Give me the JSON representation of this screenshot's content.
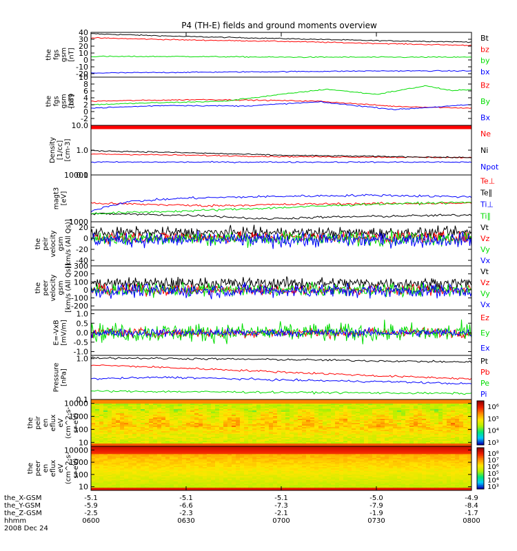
{
  "title": "P4 (TH-E) fields and ground moments overview",
  "colors": {
    "black": "#000000",
    "red": "#ff0000",
    "green": "#00dd00",
    "blue": "#0000ff"
  },
  "chart_data": [
    {
      "type": "line",
      "panel": 1,
      "ylabel": [
        "the",
        "fgs",
        "gsm",
        "[nT]"
      ],
      "ylim": [
        -25,
        40
      ],
      "yticks": [
        40,
        30,
        20,
        10,
        0,
        -10,
        -20
      ],
      "series": [
        {
          "name": "Bt",
          "color": "black",
          "x": [
            0,
            0.25,
            0.5,
            0.75,
            1
          ],
          "values": [
            38,
            34,
            31,
            28,
            26
          ]
        },
        {
          "name": "bz",
          "color": "red",
          "x": [
            0,
            0.25,
            0.5,
            0.75,
            1
          ],
          "values": [
            32,
            29,
            27,
            24,
            21
          ]
        },
        {
          "name": "by",
          "color": "green",
          "x": [
            0,
            0.25,
            0.5,
            0.75,
            1
          ],
          "values": [
            5,
            5,
            4,
            4,
            4
          ]
        },
        {
          "name": "bx",
          "color": "blue",
          "x": [
            0,
            0.25,
            0.5,
            0.75,
            1
          ],
          "values": [
            -19,
            -18,
            -17,
            -16,
            -16
          ]
        }
      ]
    },
    {
      "type": "line",
      "panel": 2,
      "ylabel": [
        "the",
        "fgs",
        "gsm",
        "[nT]"
      ],
      "ylabel_overlay": "-189",
      "ylim": [
        -4,
        10
      ],
      "yticks": [
        10,
        8,
        6,
        4,
        2,
        0,
        -2
      ],
      "series": [
        {
          "name": "Bz",
          "color": "red",
          "x": [
            0,
            0.1,
            0.3,
            0.5,
            0.6,
            0.8,
            1
          ],
          "values": [
            3,
            3.2,
            3.5,
            3.2,
            3,
            1.5,
            1
          ]
        },
        {
          "name": "By",
          "color": "green",
          "x": [
            0,
            0.15,
            0.35,
            0.5,
            0.62,
            0.75,
            0.88,
            0.95,
            1
          ],
          "values": [
            2,
            2.5,
            3,
            5,
            6.5,
            5,
            7.5,
            6,
            6.5
          ]
        },
        {
          "name": "Bx",
          "color": "blue",
          "x": [
            0,
            0.2,
            0.4,
            0.6,
            0.8,
            1
          ],
          "values": [
            1,
            1.8,
            1.6,
            2.8,
            0.6,
            2
          ]
        }
      ]
    },
    {
      "type": "line",
      "panel": 3,
      "yscale": "log",
      "ylabel": [
        "Density",
        "[1/cc]",
        "[cm-3]"
      ],
      "ylim": [
        0.1,
        10
      ],
      "yticks": [
        10.0,
        1.0,
        0.1
      ],
      "yticklabels": [
        "10.0",
        "1.0",
        "0.1"
      ],
      "series": [
        {
          "name": "Ne",
          "color": "red",
          "x": [
            0,
            0.5,
            1
          ],
          "values": [
            0.7,
            0.55,
            0.5
          ]
        },
        {
          "name": "Ni",
          "color": "black",
          "x": [
            0,
            0.5,
            1
          ],
          "values": [
            0.95,
            0.62,
            0.5
          ]
        },
        {
          "name": "Npot",
          "color": "blue",
          "x": [
            0,
            0.5,
            1
          ],
          "values": [
            0.33,
            0.33,
            0.33
          ]
        }
      ]
    },
    {
      "type": "line",
      "panel": 4,
      "yscale": "log",
      "ylabel": [
        "magt3",
        "[eV]"
      ],
      "ylim": [
        1000,
        10000
      ],
      "yticks": [
        10000,
        1000
      ],
      "yticklabels": [
        "10000",
        "1000"
      ],
      "series": [
        {
          "name": "Te⊥",
          "color": "red",
          "x": [
            0,
            0.3,
            0.6,
            1
          ],
          "values": [
            2500,
            2200,
            2400,
            2500
          ]
        },
        {
          "name": "Te∥",
          "color": "black",
          "x": [
            0,
            0.3,
            0.45,
            0.6,
            1
          ],
          "values": [
            1500,
            1350,
            1150,
            1250,
            1400
          ]
        },
        {
          "name": "Ti⊥",
          "color": "blue",
          "x": [
            0,
            0.1,
            0.25,
            0.5,
            0.75,
            1
          ],
          "values": [
            1700,
            2700,
            3200,
            3500,
            3700,
            3400
          ]
        },
        {
          "name": "Ti∥",
          "color": "green",
          "x": [
            0,
            0.25,
            0.5,
            0.75,
            1
          ],
          "values": [
            1500,
            1700,
            2000,
            2400,
            2600
          ]
        }
      ]
    },
    {
      "type": "line",
      "panel": 5,
      "ylabel": [
        "the",
        "peir",
        "velocity",
        "gsm",
        "[km/s (All Qs)]"
      ],
      "ylim": [
        -50,
        30
      ],
      "yticks": [
        20,
        0,
        -20,
        -40
      ],
      "series": [
        {
          "name": "Vt",
          "color": "black",
          "mean": 10,
          "noise": 7
        },
        {
          "name": "Vz",
          "color": "red",
          "mean": 2,
          "noise": 7
        },
        {
          "name": "Vy",
          "color": "green",
          "mean": 0,
          "noise": 9
        },
        {
          "name": "Vx",
          "color": "blue",
          "mean": -3,
          "noise": 9
        }
      ]
    },
    {
      "type": "line",
      "panel": 6,
      "ylabel": [
        "the",
        "peer",
        "velocity",
        "gsm",
        "[km/s (All Qs)]"
      ],
      "ylim": [
        -250,
        300
      ],
      "yticks": [
        300,
        200,
        100,
        0,
        -100,
        -200
      ],
      "series": [
        {
          "name": "Vt",
          "color": "black",
          "mean": 80,
          "noise": 55
        },
        {
          "name": "Vz",
          "color": "red",
          "mean": 0,
          "noise": 45
        },
        {
          "name": "Vy",
          "color": "green",
          "mean": 0,
          "noise": 55
        },
        {
          "name": "Vx",
          "color": "blue",
          "mean": -10,
          "noise": 60
        }
      ]
    },
    {
      "type": "line",
      "panel": 7,
      "ylabel": [
        "E=-VxB",
        "[mV/m]"
      ],
      "ylim": [
        -1.2,
        1.2
      ],
      "yticks": [
        1.0,
        0.5,
        0.0,
        -0.5,
        -1.0
      ],
      "yticklabels": [
        "1.0",
        "0.5",
        "0.0",
        "-0.5",
        "-1.0"
      ],
      "series": [
        {
          "name": "Ez",
          "color": "red",
          "mean": 0,
          "noise": 0.18
        },
        {
          "name": "Ey",
          "color": "green",
          "mean": 0,
          "noise": 0.35
        },
        {
          "name": "Ex",
          "color": "blue",
          "mean": 0,
          "noise": 0.15
        }
      ]
    },
    {
      "type": "line",
      "panel": 8,
      "yscale": "log",
      "ylabel": [
        "Pressure",
        "[nPa]"
      ],
      "ylim": [
        0.1,
        1.2
      ],
      "yticks": [
        1.0,
        0.1
      ],
      "yticklabels": [
        "1.0",
        "0.1"
      ],
      "series": [
        {
          "name": "Pt",
          "color": "black",
          "x": [
            0,
            0.5,
            1
          ],
          "values": [
            1.05,
            0.95,
            0.82
          ]
        },
        {
          "name": "Pb",
          "color": "red",
          "x": [
            0,
            0.25,
            0.5,
            0.75,
            1
          ],
          "values": [
            0.7,
            0.58,
            0.47,
            0.38,
            0.32
          ]
        },
        {
          "name": "Pe",
          "color": "green",
          "x": [
            0,
            0.5,
            1
          ],
          "values": [
            0.16,
            0.15,
            0.14
          ]
        },
        {
          "name": "Pi",
          "color": "blue",
          "x": [
            0,
            0.2,
            0.5,
            0.8,
            1
          ],
          "values": [
            0.32,
            0.35,
            0.3,
            0.27,
            0.24
          ]
        }
      ]
    },
    {
      "type": "heatmap",
      "panel": 9,
      "yscale": "log",
      "ylabel": [
        "the",
        "peir",
        "en",
        "eflux",
        "eV",
        "(cm^2-s-",
        "sr-eV)"
      ],
      "ylim": [
        5,
        20000
      ],
      "yticks": [
        10000,
        1000,
        100,
        10
      ],
      "yticklabels": [
        "10000",
        "1000",
        "100",
        "10"
      ],
      "colorbar": {
        "ticks": [
          "10⁶",
          "10⁵",
          "10⁴",
          "10³"
        ]
      }
    },
    {
      "type": "heatmap",
      "panel": 10,
      "yscale": "log",
      "ylabel": [
        "the",
        "peer",
        "en",
        "eflux",
        "eV",
        "(cm^2-s-",
        "sr-eV)"
      ],
      "ylim": [
        5,
        20000
      ],
      "yticks": [
        10000,
        1000,
        100,
        10
      ],
      "yticklabels": [
        "10000",
        "1000",
        "100",
        "10"
      ],
      "colorbar": {
        "ticks": [
          "10⁸",
          "10⁷",
          "10⁶",
          "10⁵",
          "10⁴",
          "10³"
        ]
      }
    }
  ],
  "x_axis": {
    "ticks": [
      0,
      0.25,
      0.5,
      0.75,
      1
    ],
    "rows": [
      {
        "label": "the_X-GSM",
        "values": [
          "-5.1",
          "-5.1",
          "-5.1",
          "-5.0",
          "-4.9"
        ]
      },
      {
        "label": "the_Y-GSM",
        "values": [
          "-5.9",
          "-6.6",
          "-7.3",
          "-7.9",
          "-8.4"
        ]
      },
      {
        "label": "the_Z-GSM",
        "values": [
          "-2.5",
          "-2.3",
          "-2.1",
          "-1.9",
          "-1.7"
        ]
      },
      {
        "label": "hhmm",
        "values": [
          "0600",
          "0630",
          "0700",
          "0730",
          "0800"
        ]
      }
    ],
    "date": "2008 Dec 24"
  }
}
